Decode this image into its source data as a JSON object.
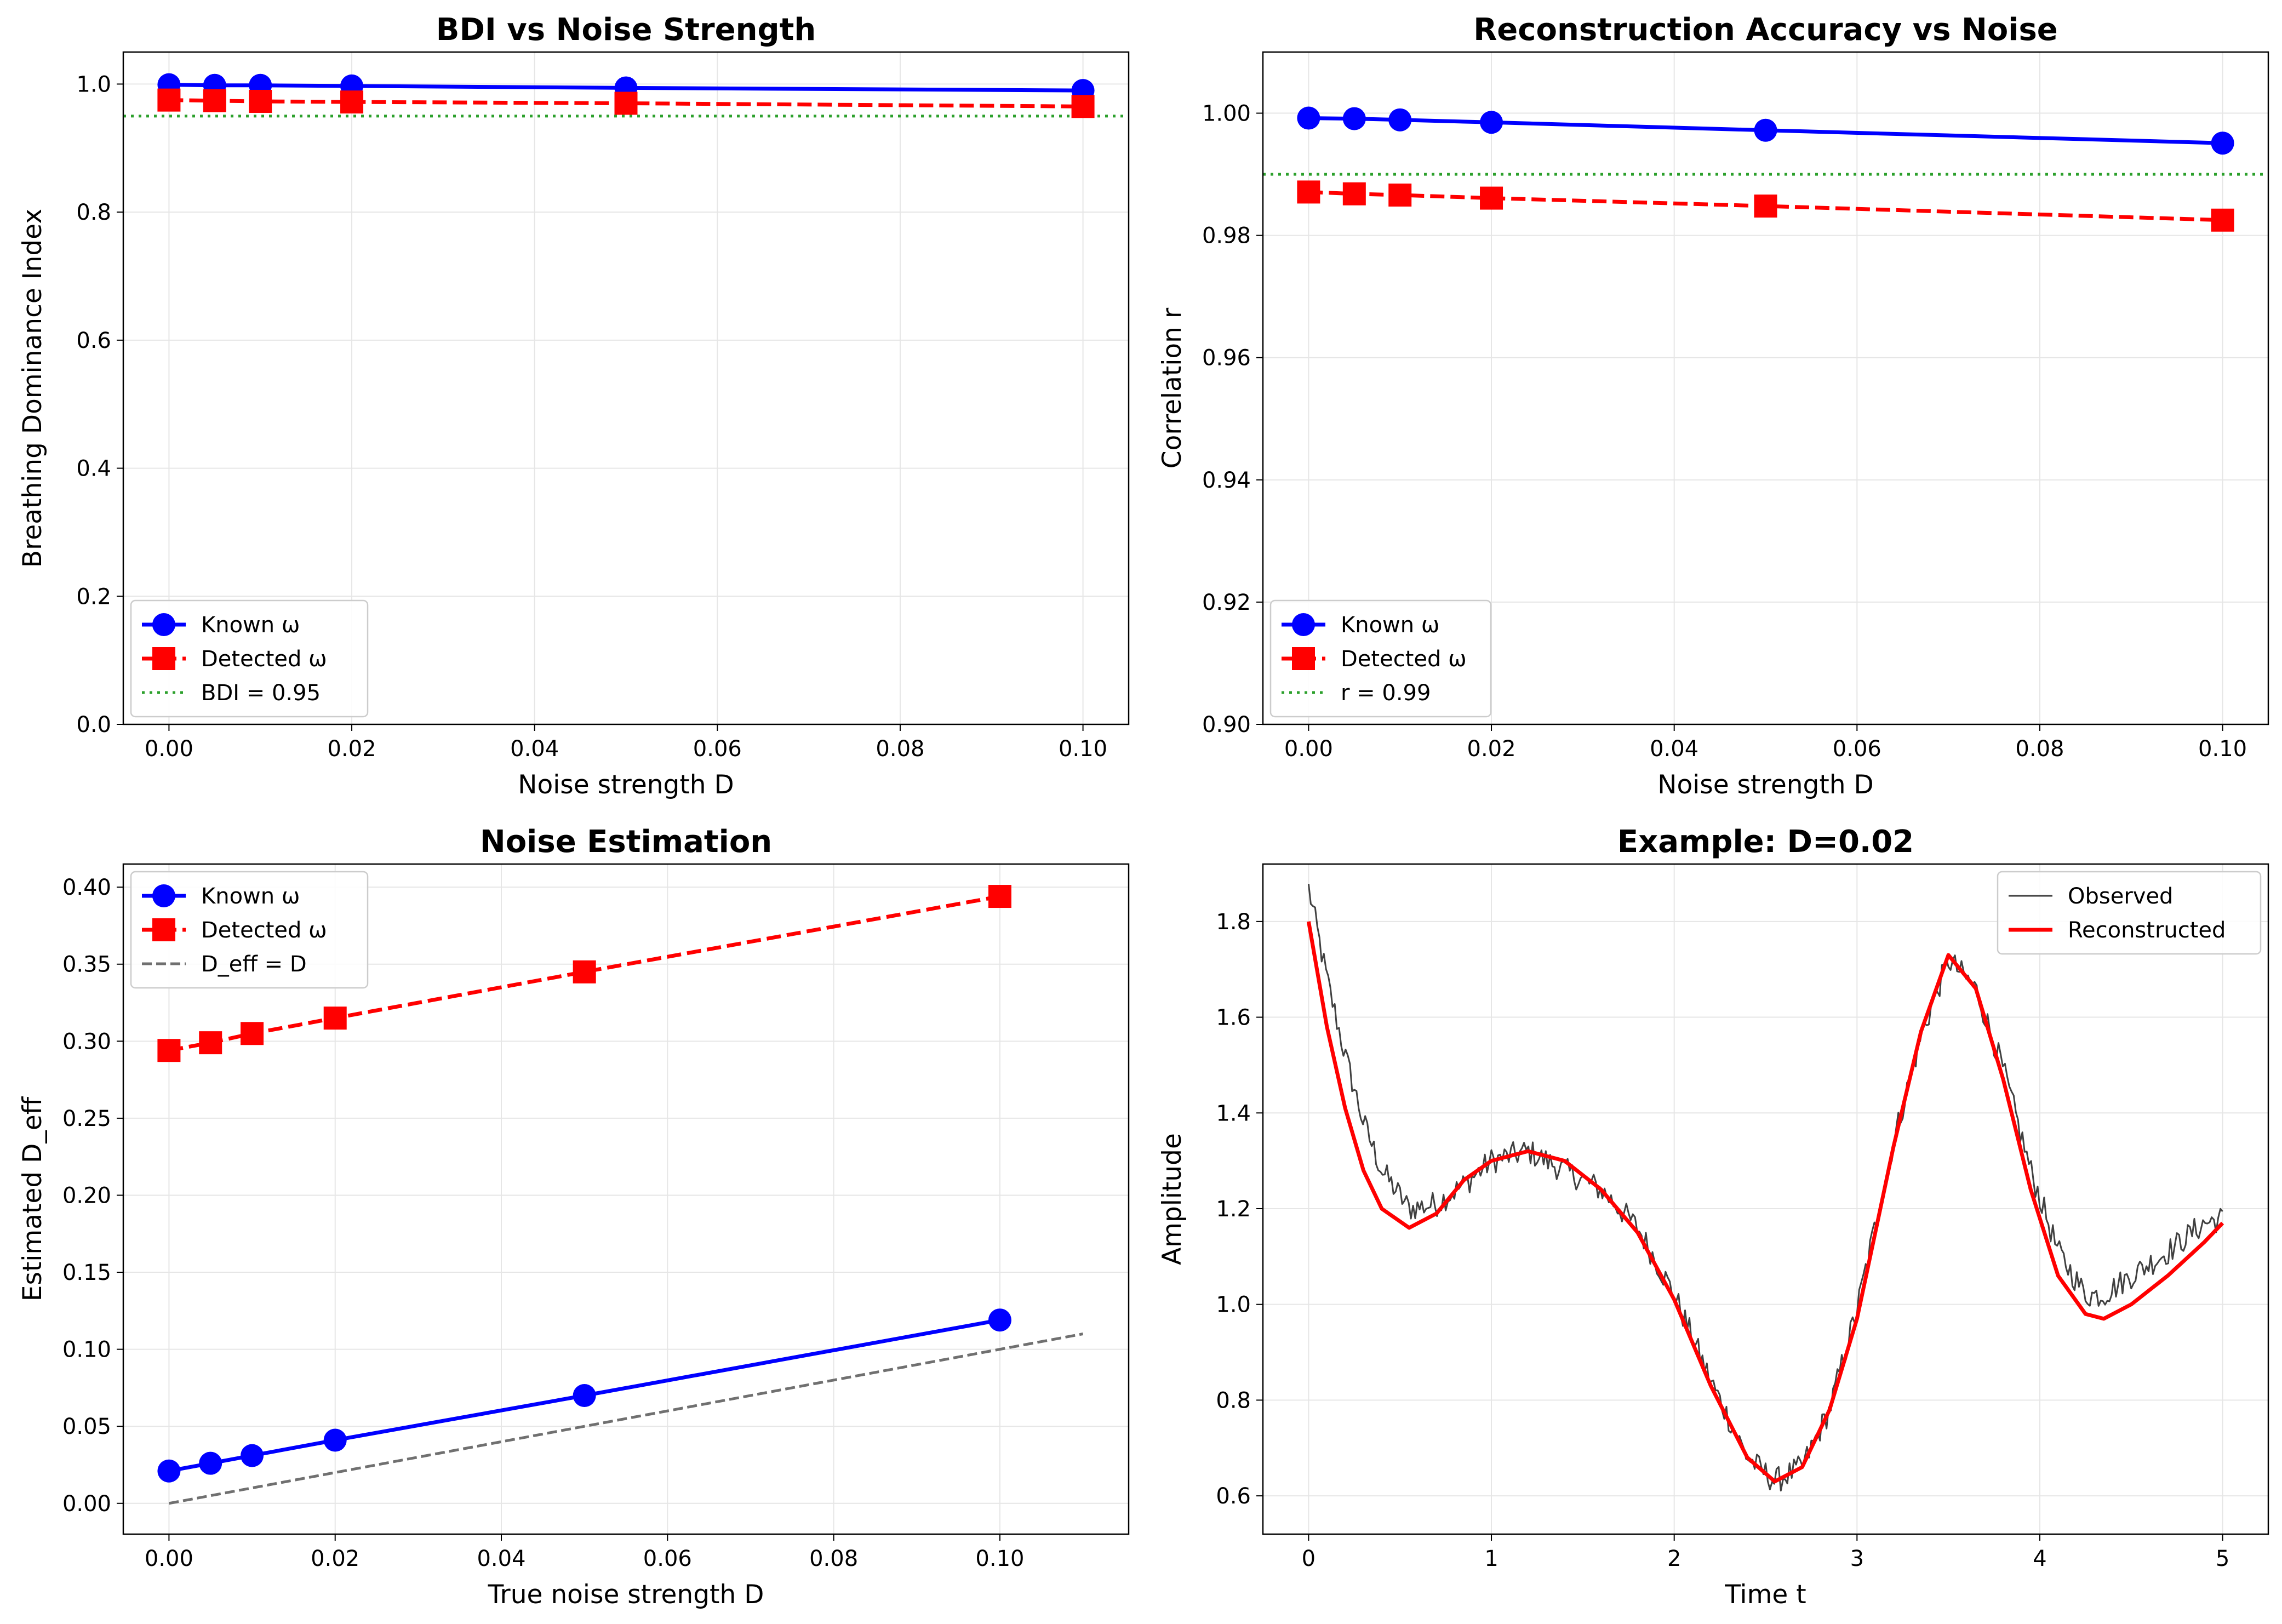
{
  "chart_data": [
    {
      "type": "line",
      "title": "BDI vs Noise Strength",
      "xlabel": "Noise strength D",
      "ylabel": "Breathing Dominance Index",
      "xlim": [
        -0.005,
        0.105
      ],
      "ylim": [
        0.0,
        1.05
      ],
      "xticks": [
        0.0,
        0.02,
        0.04,
        0.06,
        0.08,
        0.1
      ],
      "xtick_labels": [
        "0.00",
        "0.02",
        "0.04",
        "0.06",
        "0.08",
        "0.10"
      ],
      "yticks": [
        0.0,
        0.2,
        0.4,
        0.6,
        0.8,
        1.0
      ],
      "ytick_labels": [
        "0.0",
        "0.2",
        "0.4",
        "0.6",
        "0.8",
        "1.0"
      ],
      "grid": true,
      "legend_position": "lower-left",
      "series": [
        {
          "name": "Known ω",
          "color": "#0000ff",
          "style": "solid",
          "marker": "circle",
          "x": [
            0.0,
            0.005,
            0.01,
            0.02,
            0.05,
            0.1
          ],
          "y": [
            0.999,
            0.998,
            0.998,
            0.997,
            0.994,
            0.99
          ]
        },
        {
          "name": "Detected ω",
          "color": "#ff0000",
          "style": "dashed",
          "marker": "square",
          "x": [
            0.0,
            0.005,
            0.01,
            0.02,
            0.05,
            0.1
          ],
          "y": [
            0.975,
            0.974,
            0.973,
            0.972,
            0.97,
            0.965
          ]
        }
      ],
      "hlines": [
        {
          "name": "BDI = 0.95",
          "y": 0.95,
          "color": "#2ca02c",
          "style": "dotted"
        }
      ]
    },
    {
      "type": "line",
      "title": "Reconstruction Accuracy vs Noise",
      "xlabel": "Noise strength D",
      "ylabel": "Correlation r",
      "xlim": [
        -0.005,
        0.105
      ],
      "ylim": [
        0.9,
        1.01
      ],
      "xticks": [
        0.0,
        0.02,
        0.04,
        0.06,
        0.08,
        0.1
      ],
      "xtick_labels": [
        "0.00",
        "0.02",
        "0.04",
        "0.06",
        "0.08",
        "0.10"
      ],
      "yticks": [
        0.9,
        0.92,
        0.94,
        0.96,
        0.98,
        1.0
      ],
      "ytick_labels": [
        "0.90",
        "0.92",
        "0.94",
        "0.96",
        "0.98",
        "1.00"
      ],
      "grid": true,
      "legend_position": "lower-left",
      "series": [
        {
          "name": "Known ω",
          "color": "#0000ff",
          "style": "solid",
          "marker": "circle",
          "x": [
            0.0,
            0.005,
            0.01,
            0.02,
            0.05,
            0.1
          ],
          "y": [
            0.9992,
            0.9991,
            0.9989,
            0.9985,
            0.9972,
            0.9951
          ]
        },
        {
          "name": "Detected ω",
          "color": "#ff0000",
          "style": "dashed",
          "marker": "square",
          "x": [
            0.0,
            0.005,
            0.01,
            0.02,
            0.05,
            0.1
          ],
          "y": [
            0.9871,
            0.9868,
            0.9866,
            0.9861,
            0.9848,
            0.9825
          ]
        }
      ],
      "hlines": [
        {
          "name": "r = 0.99",
          "y": 0.99,
          "color": "#2ca02c",
          "style": "dotted"
        }
      ]
    },
    {
      "type": "line",
      "title": "Noise Estimation",
      "xlabel": "True noise strength D",
      "ylabel": "Estimated D_eff",
      "xlim": [
        -0.0055,
        0.1155
      ],
      "ylim": [
        -0.02,
        0.415
      ],
      "xticks": [
        0.0,
        0.02,
        0.04,
        0.06,
        0.08,
        0.1
      ],
      "xtick_labels": [
        "0.00",
        "0.02",
        "0.04",
        "0.06",
        "0.08",
        "0.10"
      ],
      "yticks": [
        0.0,
        0.05,
        0.1,
        0.15,
        0.2,
        0.25,
        0.3,
        0.35,
        0.4
      ],
      "ytick_labels": [
        "0.00",
        "0.05",
        "0.10",
        "0.15",
        "0.20",
        "0.25",
        "0.30",
        "0.35",
        "0.40"
      ],
      "grid": true,
      "legend_position": "upper-left",
      "series": [
        {
          "name": "Known ω",
          "color": "#0000ff",
          "style": "solid",
          "marker": "circle",
          "x": [
            0.0,
            0.005,
            0.01,
            0.02,
            0.05,
            0.1
          ],
          "y": [
            0.021,
            0.026,
            0.031,
            0.041,
            0.07,
            0.119
          ]
        },
        {
          "name": "Detected ω",
          "color": "#ff0000",
          "style": "dashed",
          "marker": "square",
          "x": [
            0.0,
            0.005,
            0.01,
            0.02,
            0.05,
            0.1
          ],
          "y": [
            0.294,
            0.299,
            0.305,
            0.315,
            0.345,
            0.394
          ]
        },
        {
          "name": "D_eff = D",
          "color": "#707070",
          "style": "dashed",
          "marker": "none",
          "x": [
            0.0,
            0.11
          ],
          "y": [
            0.0,
            0.11
          ]
        }
      ]
    },
    {
      "type": "line",
      "title": "Example: D=0.02",
      "xlabel": "Time t",
      "ylabel": "Amplitude",
      "xlim": [
        -0.25,
        5.25
      ],
      "ylim": [
        0.52,
        1.92
      ],
      "xticks": [
        0,
        1,
        2,
        3,
        4,
        5
      ],
      "xtick_labels": [
        "0",
        "1",
        "2",
        "3",
        "4",
        "5"
      ],
      "yticks": [
        0.6,
        0.8,
        1.0,
        1.2,
        1.4,
        1.6,
        1.8
      ],
      "ytick_labels": [
        "0.6",
        "0.8",
        "1.0",
        "1.2",
        "1.4",
        "1.6",
        "1.8"
      ],
      "grid": true,
      "legend_position": "upper-right",
      "series": [
        {
          "name": "Observed",
          "color": "#404040",
          "style": "solid",
          "marker": "none",
          "noisy": true,
          "x": [
            0.0,
            0.1,
            0.2,
            0.3,
            0.4,
            0.55,
            0.7,
            0.85,
            1.0,
            1.2,
            1.4,
            1.6,
            1.8,
            2.0,
            2.2,
            2.4,
            2.55,
            2.7,
            2.85,
            3.0,
            3.2,
            3.35,
            3.5,
            3.65,
            3.8,
            3.95,
            4.1,
            4.25,
            4.35,
            4.5,
            4.7,
            4.9,
            5.0
          ],
          "y": [
            1.87,
            1.68,
            1.52,
            1.38,
            1.28,
            1.2,
            1.21,
            1.25,
            1.3,
            1.32,
            1.28,
            1.24,
            1.16,
            1.02,
            0.84,
            0.68,
            0.63,
            0.66,
            0.78,
            0.99,
            1.34,
            1.56,
            1.72,
            1.66,
            1.49,
            1.28,
            1.11,
            1.02,
            1.02,
            1.06,
            1.11,
            1.17,
            1.18
          ]
        },
        {
          "name": "Reconstructed",
          "color": "#ff0000",
          "style": "solid",
          "marker": "none",
          "x": [
            0.0,
            0.1,
            0.2,
            0.3,
            0.4,
            0.55,
            0.7,
            0.85,
            1.0,
            1.2,
            1.4,
            1.6,
            1.8,
            2.0,
            2.2,
            2.4,
            2.55,
            2.7,
            2.85,
            3.0,
            3.2,
            3.35,
            3.5,
            3.65,
            3.8,
            3.95,
            4.1,
            4.25,
            4.35,
            4.5,
            4.7,
            4.9,
            5.0
          ],
          "y": [
            1.8,
            1.58,
            1.41,
            1.28,
            1.2,
            1.16,
            1.19,
            1.26,
            1.3,
            1.32,
            1.3,
            1.24,
            1.15,
            1.01,
            0.83,
            0.68,
            0.63,
            0.66,
            0.78,
            0.97,
            1.33,
            1.57,
            1.73,
            1.66,
            1.47,
            1.24,
            1.06,
            0.98,
            0.97,
            1.0,
            1.06,
            1.13,
            1.17
          ]
        }
      ]
    }
  ]
}
